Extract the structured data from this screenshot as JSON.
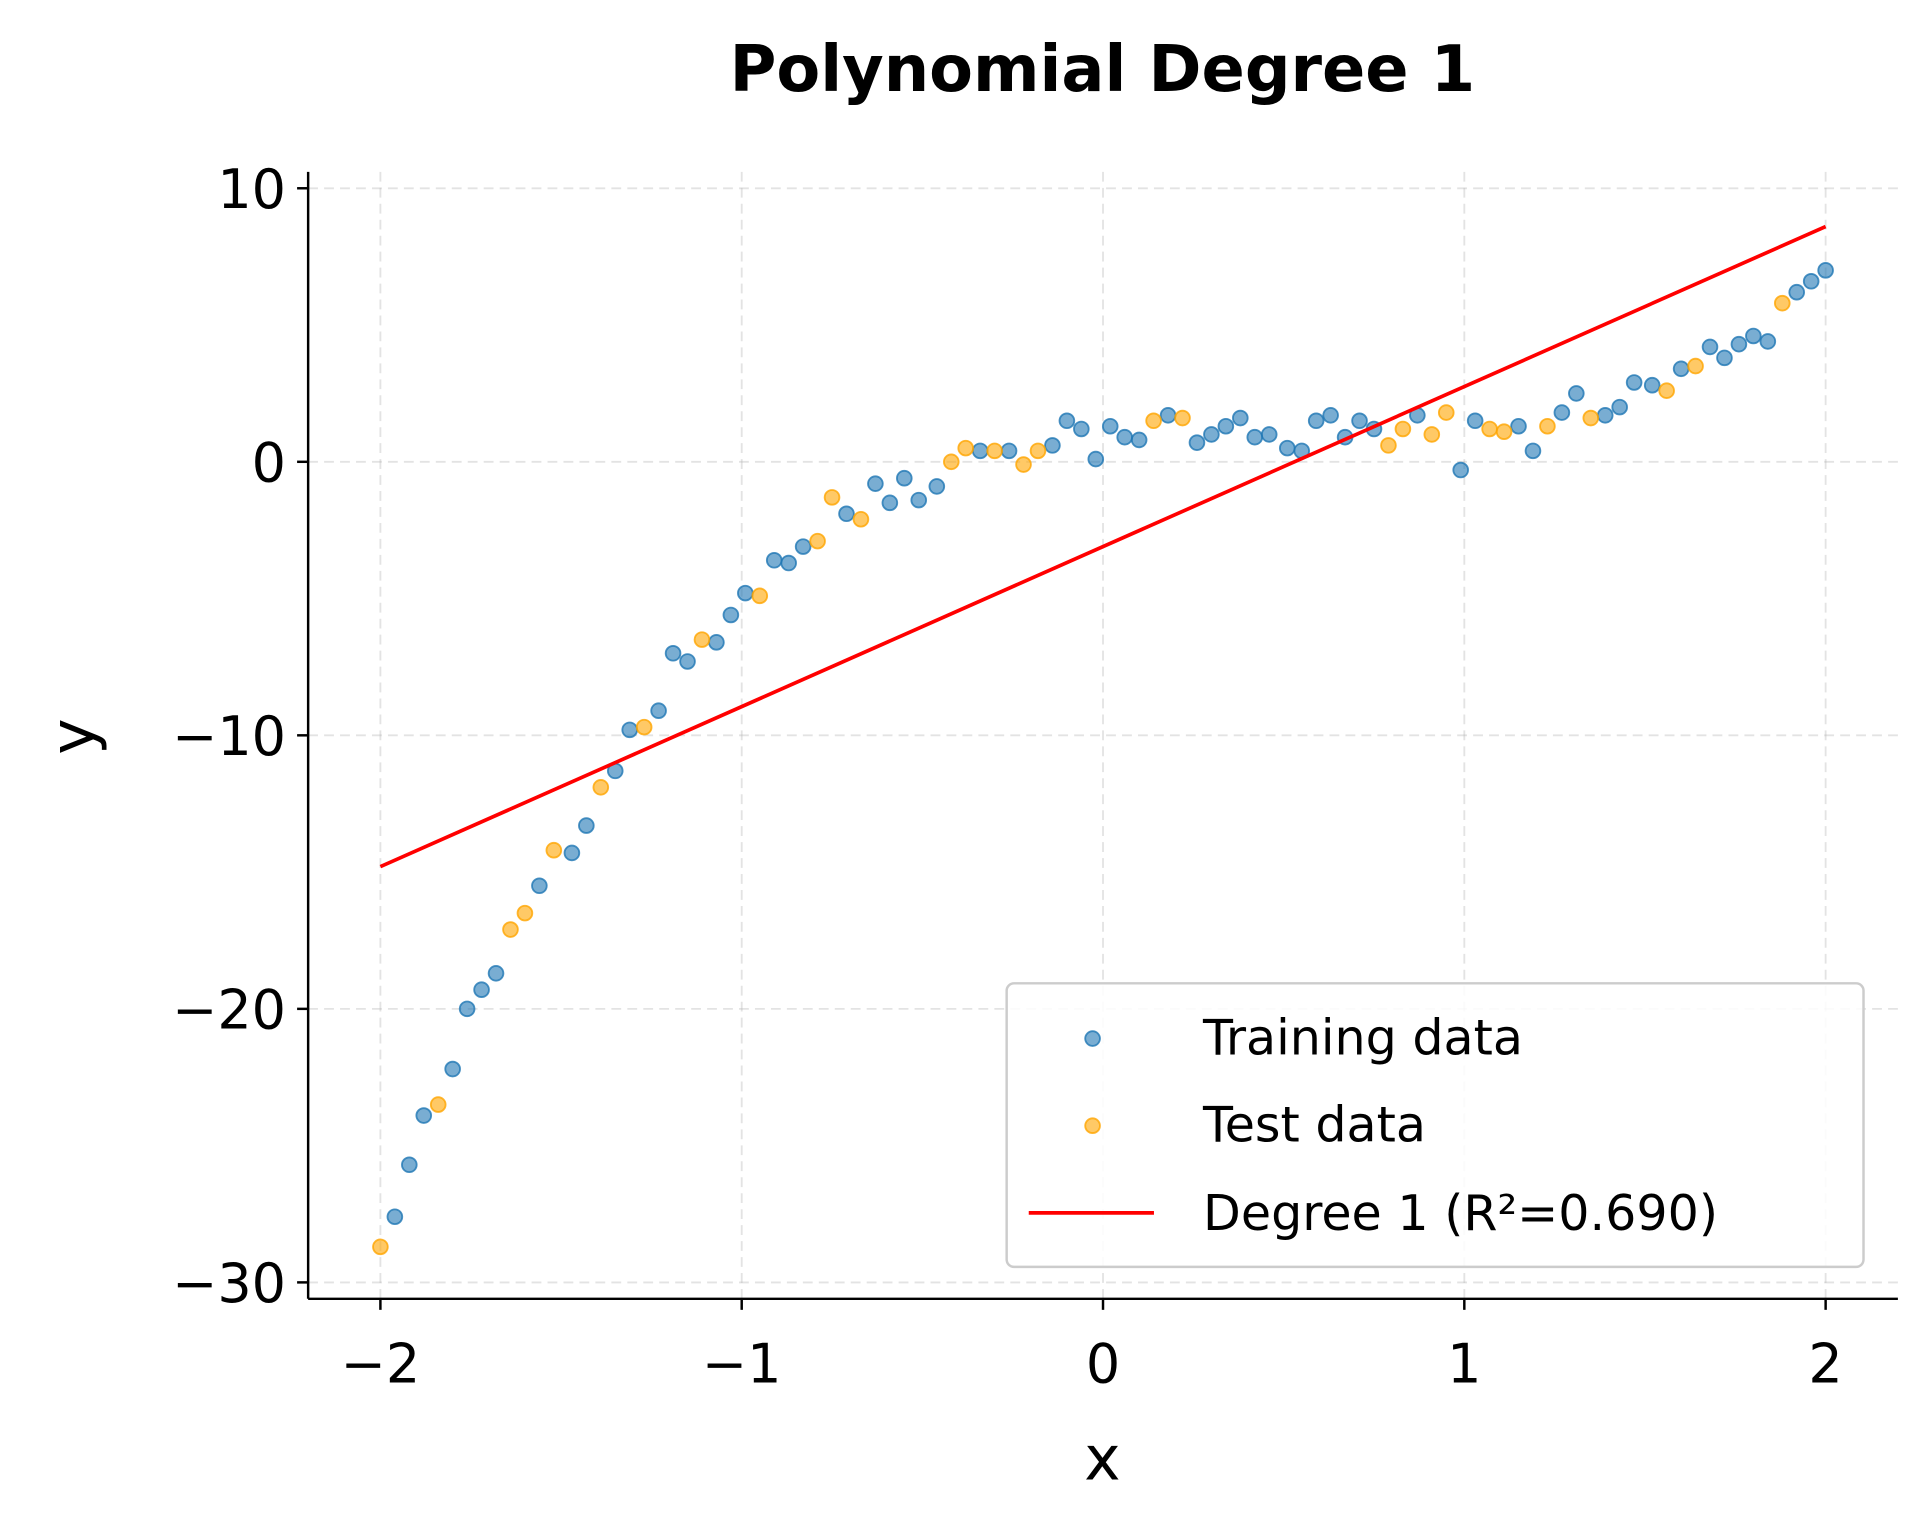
{
  "chart_data": {
    "type": "scatter",
    "title": "Polynomial Degree 1",
    "xlabel": "x",
    "ylabel": "y",
    "xlim": [
      -2.2,
      2.2
    ],
    "ylim": [
      -30.6,
      10.6
    ],
    "xticks": [
      -2,
      -1,
      0,
      1,
      2
    ],
    "xtick_labels": [
      "−2",
      "−1",
      "0",
      "1",
      "2"
    ],
    "yticks": [
      -30,
      -20,
      -10,
      0,
      10
    ],
    "ytick_labels": [
      "−30",
      "−20",
      "−10",
      "0",
      "10"
    ],
    "grid": true,
    "legend_placement": "lower-right",
    "series": [
      {
        "name": "Training data",
        "kind": "scatter",
        "color": "#1f77b4",
        "points": [
          [
            -1.96,
            -27.6
          ],
          [
            -1.92,
            -25.7
          ],
          [
            -1.88,
            -23.9
          ],
          [
            -1.8,
            -22.2
          ],
          [
            -1.76,
            -20.0
          ],
          [
            -1.72,
            -19.3
          ],
          [
            -1.68,
            -18.7
          ],
          [
            -1.56,
            -15.5
          ],
          [
            -1.47,
            -14.3
          ],
          [
            -1.43,
            -13.3
          ],
          [
            -1.35,
            -11.3
          ],
          [
            -1.31,
            -9.8
          ],
          [
            -1.23,
            -9.1
          ],
          [
            -1.19,
            -7.0
          ],
          [
            -1.15,
            -7.3
          ],
          [
            -1.07,
            -6.6
          ],
          [
            -1.03,
            -5.6
          ],
          [
            -0.99,
            -4.8
          ],
          [
            -0.91,
            -3.6
          ],
          [
            -0.87,
            -3.7
          ],
          [
            -0.83,
            -3.1
          ],
          [
            -0.71,
            -1.9
          ],
          [
            -0.63,
            -0.8
          ],
          [
            -0.59,
            -1.5
          ],
          [
            -0.55,
            -0.6
          ],
          [
            -0.51,
            -1.4
          ],
          [
            -0.46,
            -0.9
          ],
          [
            -0.34,
            0.4
          ],
          [
            -0.26,
            0.4
          ],
          [
            -0.14,
            0.6
          ],
          [
            -0.1,
            1.5
          ],
          [
            -0.06,
            1.2
          ],
          [
            -0.02,
            0.1
          ],
          [
            0.02,
            1.3
          ],
          [
            0.06,
            0.9
          ],
          [
            0.1,
            0.8
          ],
          [
            0.18,
            1.7
          ],
          [
            0.26,
            0.7
          ],
          [
            0.3,
            1.0
          ],
          [
            0.34,
            1.3
          ],
          [
            0.38,
            1.6
          ],
          [
            0.42,
            0.9
          ],
          [
            0.46,
            1.0
          ],
          [
            0.51,
            0.5
          ],
          [
            0.55,
            0.4
          ],
          [
            0.59,
            1.5
          ],
          [
            0.63,
            1.7
          ],
          [
            0.67,
            0.9
          ],
          [
            0.71,
            1.5
          ],
          [
            0.75,
            1.2
          ],
          [
            0.87,
            1.7
          ],
          [
            0.99,
            -0.3
          ],
          [
            1.03,
            1.5
          ],
          [
            1.15,
            1.3
          ],
          [
            1.19,
            0.4
          ],
          [
            1.27,
            1.8
          ],
          [
            1.31,
            2.5
          ],
          [
            1.39,
            1.7
          ],
          [
            1.43,
            2.0
          ],
          [
            1.47,
            2.9
          ],
          [
            1.52,
            2.8
          ],
          [
            1.6,
            3.4
          ],
          [
            1.68,
            4.2
          ],
          [
            1.72,
            3.8
          ],
          [
            1.76,
            4.3
          ],
          [
            1.8,
            4.6
          ],
          [
            1.84,
            4.4
          ],
          [
            1.92,
            6.2
          ],
          [
            1.96,
            6.6
          ],
          [
            2.0,
            7.0
          ]
        ]
      },
      {
        "name": "Test data",
        "kind": "scatter",
        "color": "#ffa500",
        "points": [
          [
            -2.0,
            -28.7
          ],
          [
            -1.84,
            -23.5
          ],
          [
            -1.64,
            -17.1
          ],
          [
            -1.6,
            -16.5
          ],
          [
            -1.52,
            -14.2
          ],
          [
            -1.39,
            -11.9
          ],
          [
            -1.27,
            -9.7
          ],
          [
            -1.11,
            -6.5
          ],
          [
            -0.95,
            -4.9
          ],
          [
            -0.79,
            -2.9
          ],
          [
            -0.75,
            -1.3
          ],
          [
            -0.67,
            -2.1
          ],
          [
            -0.42,
            0.0
          ],
          [
            -0.38,
            0.5
          ],
          [
            -0.3,
            0.4
          ],
          [
            -0.22,
            -0.1
          ],
          [
            -0.18,
            0.4
          ],
          [
            0.14,
            1.5
          ],
          [
            0.22,
            1.6
          ],
          [
            0.79,
            0.6
          ],
          [
            0.83,
            1.2
          ],
          [
            0.91,
            1.0
          ],
          [
            0.95,
            1.8
          ],
          [
            1.07,
            1.2
          ],
          [
            1.11,
            1.1
          ],
          [
            1.23,
            1.3
          ],
          [
            1.35,
            1.6
          ],
          [
            1.56,
            2.6
          ],
          [
            1.64,
            3.5
          ],
          [
            1.88,
            5.8
          ]
        ]
      },
      {
        "name": "Degree 1 (R²=0.690)",
        "kind": "line",
        "color": "#ff0000",
        "points": [
          [
            -2.0,
            -14.8
          ],
          [
            2.0,
            8.6
          ]
        ]
      }
    ]
  }
}
